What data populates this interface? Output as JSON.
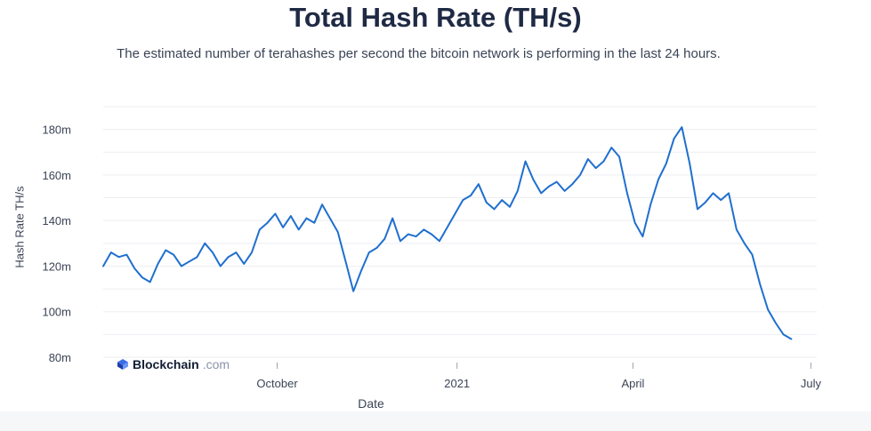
{
  "chart_data": {
    "type": "line",
    "title": "Total Hash Rate (TH/s)",
    "subtitle": "The estimated number of terahashes per second the bitcoin network is performing in the last 24 hours.",
    "xlabel": "Date",
    "ylabel": "Hash Rate TH/s",
    "ylim": [
      80000000,
      190000000
    ],
    "xlim": [
      "2020-07-04",
      "2021-07-04"
    ],
    "y_ticks": [
      {
        "value": 80000000,
        "label": "80m"
      },
      {
        "value": 100000000,
        "label": "100m"
      },
      {
        "value": 120000000,
        "label": "120m"
      },
      {
        "value": 140000000,
        "label": "140m"
      },
      {
        "value": 160000000,
        "label": "160m"
      },
      {
        "value": 180000000,
        "label": "180m"
      }
    ],
    "x_ticks": [
      {
        "date": "2020-10-01",
        "label": "October"
      },
      {
        "date": "2021-01-01",
        "label": "2021"
      },
      {
        "date": "2021-04-01",
        "label": "April"
      },
      {
        "date": "2021-07-01",
        "label": "July"
      }
    ],
    "grid": true,
    "legend": "none",
    "series": [
      {
        "color": "#1f6fcf",
        "points": [
          [
            "2020-07-04",
            120000000
          ],
          [
            "2020-07-08",
            126000000
          ],
          [
            "2020-07-12",
            124000000
          ],
          [
            "2020-07-16",
            125000000
          ],
          [
            "2020-07-20",
            119000000
          ],
          [
            "2020-07-24",
            115000000
          ],
          [
            "2020-07-28",
            113000000
          ],
          [
            "2020-08-01",
            121000000
          ],
          [
            "2020-08-05",
            127000000
          ],
          [
            "2020-08-09",
            125000000
          ],
          [
            "2020-08-13",
            120000000
          ],
          [
            "2020-08-17",
            122000000
          ],
          [
            "2020-08-21",
            124000000
          ],
          [
            "2020-08-25",
            130000000
          ],
          [
            "2020-08-29",
            126000000
          ],
          [
            "2020-09-02",
            120000000
          ],
          [
            "2020-09-06",
            124000000
          ],
          [
            "2020-09-10",
            126000000
          ],
          [
            "2020-09-14",
            121000000
          ],
          [
            "2020-09-18",
            126000000
          ],
          [
            "2020-09-22",
            136000000
          ],
          [
            "2020-09-26",
            139000000
          ],
          [
            "2020-09-30",
            143000000
          ],
          [
            "2020-10-04",
            137000000
          ],
          [
            "2020-10-08",
            142000000
          ],
          [
            "2020-10-12",
            136000000
          ],
          [
            "2020-10-16",
            141000000
          ],
          [
            "2020-10-20",
            139000000
          ],
          [
            "2020-10-24",
            147000000
          ],
          [
            "2020-10-28",
            141000000
          ],
          [
            "2020-11-01",
            135000000
          ],
          [
            "2020-11-05",
            122000000
          ],
          [
            "2020-11-09",
            109000000
          ],
          [
            "2020-11-13",
            118000000
          ],
          [
            "2020-11-17",
            126000000
          ],
          [
            "2020-11-21",
            128000000
          ],
          [
            "2020-11-25",
            132000000
          ],
          [
            "2020-11-29",
            141000000
          ],
          [
            "2020-12-03",
            131000000
          ],
          [
            "2020-12-07",
            134000000
          ],
          [
            "2020-12-11",
            133000000
          ],
          [
            "2020-12-15",
            136000000
          ],
          [
            "2020-12-19",
            134000000
          ],
          [
            "2020-12-23",
            131000000
          ],
          [
            "2020-12-27",
            137000000
          ],
          [
            "2020-12-31",
            143000000
          ],
          [
            "2021-01-04",
            149000000
          ],
          [
            "2021-01-08",
            151000000
          ],
          [
            "2021-01-12",
            156000000
          ],
          [
            "2021-01-16",
            148000000
          ],
          [
            "2021-01-20",
            145000000
          ],
          [
            "2021-01-24",
            149000000
          ],
          [
            "2021-01-28",
            146000000
          ],
          [
            "2021-02-01",
            153000000
          ],
          [
            "2021-02-05",
            166000000
          ],
          [
            "2021-02-09",
            158000000
          ],
          [
            "2021-02-13",
            152000000
          ],
          [
            "2021-02-17",
            155000000
          ],
          [
            "2021-02-21",
            157000000
          ],
          [
            "2021-02-25",
            153000000
          ],
          [
            "2021-03-01",
            156000000
          ],
          [
            "2021-03-05",
            160000000
          ],
          [
            "2021-03-09",
            167000000
          ],
          [
            "2021-03-13",
            163000000
          ],
          [
            "2021-03-17",
            166000000
          ],
          [
            "2021-03-21",
            172000000
          ],
          [
            "2021-03-25",
            168000000
          ],
          [
            "2021-03-29",
            152000000
          ],
          [
            "2021-04-02",
            139000000
          ],
          [
            "2021-04-06",
            133000000
          ],
          [
            "2021-04-10",
            147000000
          ],
          [
            "2021-04-14",
            158000000
          ],
          [
            "2021-04-18",
            165000000
          ],
          [
            "2021-04-22",
            176000000
          ],
          [
            "2021-04-26",
            181000000
          ],
          [
            "2021-04-30",
            165000000
          ],
          [
            "2021-05-04",
            145000000
          ],
          [
            "2021-05-08",
            148000000
          ],
          [
            "2021-05-12",
            152000000
          ],
          [
            "2021-05-16",
            149000000
          ],
          [
            "2021-05-20",
            152000000
          ],
          [
            "2021-05-24",
            136000000
          ],
          [
            "2021-05-28",
            130000000
          ],
          [
            "2021-06-01",
            125000000
          ],
          [
            "2021-06-05",
            112000000
          ],
          [
            "2021-06-09",
            101000000
          ],
          [
            "2021-06-13",
            95000000
          ],
          [
            "2021-06-17",
            90000000
          ],
          [
            "2021-06-21",
            88000000
          ]
        ]
      }
    ]
  },
  "watermark": {
    "brand": "Blockchain",
    "domain": ".com",
    "icon": "blockchain-cube-icon"
  }
}
